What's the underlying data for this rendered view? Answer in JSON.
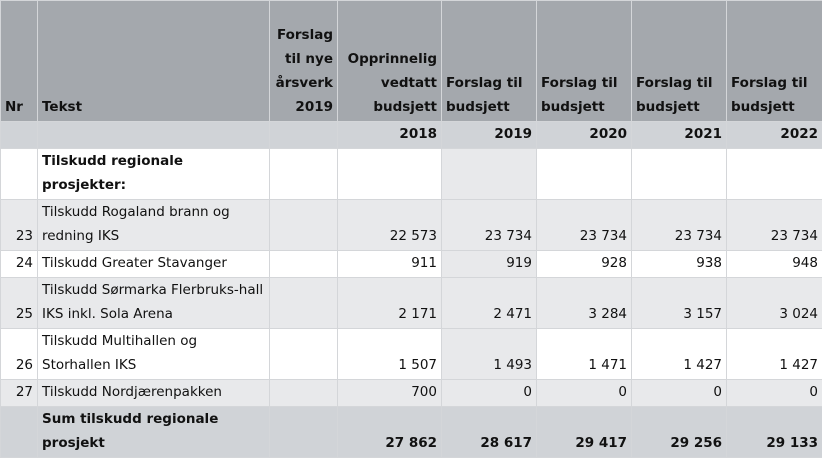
{
  "headers": {
    "nr": "Nr",
    "tekst": "Tekst",
    "arsverk": "Forslag til nye årsverk 2019",
    "vedtatt": "Opprinnelig vedtatt budsjett",
    "f2019": "Forslag til budsjett",
    "f2020": "Forslag til budsjett",
    "f2021": "Forslag til budsjett",
    "f2022": "Forslag til budsjett"
  },
  "years": [
    "2018",
    "2019",
    "2020",
    "2021",
    "2022"
  ],
  "section": "Tilskudd regionale prosjekter:",
  "rows": [
    {
      "nr": "23",
      "tekst": "Tilskudd Rogaland brann og redning IKS",
      "v": [
        "22 573",
        "23 734",
        "23 734",
        "23 734",
        "23 734"
      ]
    },
    {
      "nr": "24",
      "tekst": "Tilskudd Greater Stavanger",
      "v": [
        "911",
        "919",
        "928",
        "938",
        "948"
      ]
    },
    {
      "nr": "25",
      "tekst": "Tilskudd Sørmarka Flerbruks-hall IKS inkl. Sola Arena",
      "v": [
        "2 171",
        "2 471",
        "3 284",
        "3 157",
        "3 024"
      ]
    },
    {
      "nr": "26",
      "tekst": "Tilskudd Multihallen og Storhallen IKS",
      "v": [
        "1 507",
        "1 493",
        "1 471",
        "1 427",
        "1 427"
      ]
    },
    {
      "nr": "27",
      "tekst": "Tilskudd Nordjærenpakken",
      "v": [
        "700",
        "0",
        "0",
        "0",
        "0"
      ]
    }
  ],
  "sum": {
    "tekst": "Sum tilskudd regionale prosjekt",
    "v": [
      "27 862",
      "28 617",
      "29 417",
      "29 256",
      "29 133"
    ]
  }
}
